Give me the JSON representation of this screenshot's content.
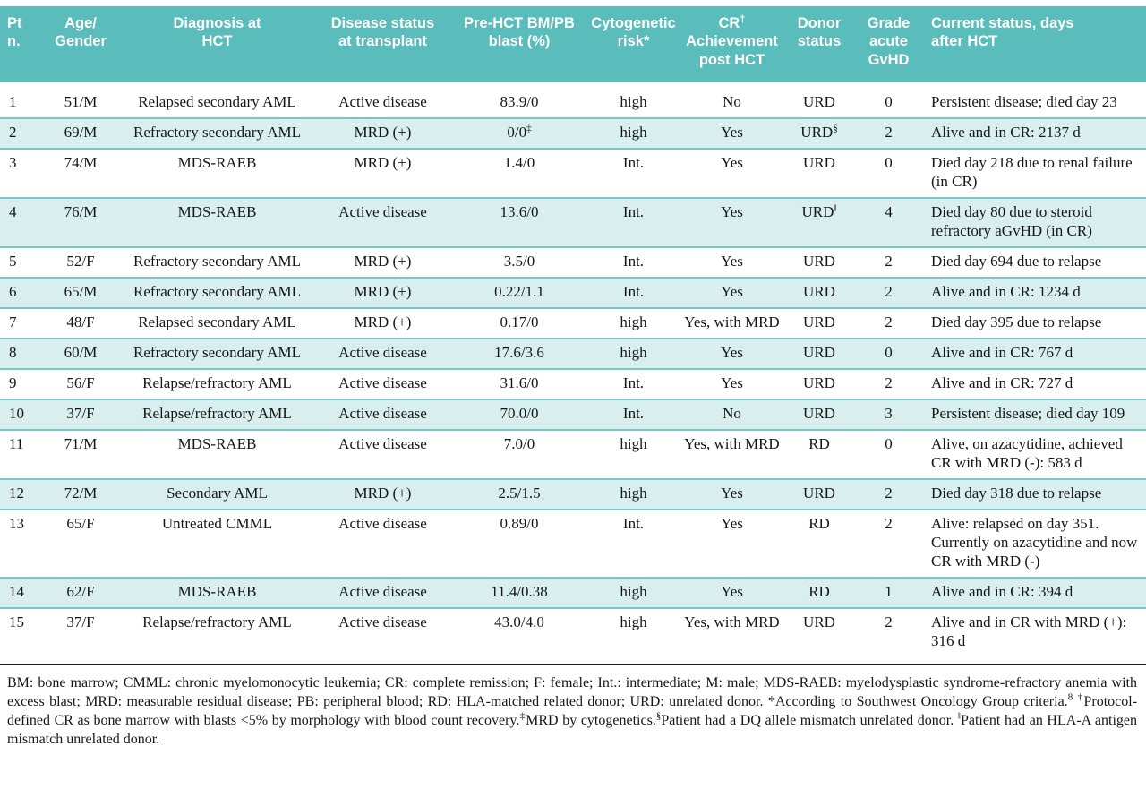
{
  "colors": {
    "header_bg": "#5bbcbc",
    "header_text": "#ffffff",
    "row_shade_bg": "#d9efef",
    "row_shade_border": "#76c7c7",
    "body_text": "#161616"
  },
  "table": {
    "columns": [
      {
        "key": "pt-number",
        "label": "Pt\nn."
      },
      {
        "key": "age-gender",
        "label": "Age/\nGender"
      },
      {
        "key": "diagnosis",
        "label": "Diagnosis at\nHCT"
      },
      {
        "key": "disease-status",
        "label": "Disease status\nat transplant"
      },
      {
        "key": "pre-hct-blast",
        "label": "Pre-HCT BM/PB\nblast (%)"
      },
      {
        "key": "cytogenetic-risk",
        "label": "Cytogenetic\nrisk*"
      },
      {
        "key": "cr-achievement",
        "label": "CR^†\nAchievement\npost HCT"
      },
      {
        "key": "donor-status",
        "label": "Donor\nstatus"
      },
      {
        "key": "grade-gvhd",
        "label": "Grade\nacute\nGvHD"
      },
      {
        "key": "current-status",
        "label": "Current status, days\nafter HCT"
      }
    ],
    "rows": [
      [
        "1",
        "51/M",
        "Relapsed secondary AML",
        "Active disease",
        "83.9/0",
        "high",
        "No",
        "URD",
        "0",
        "Persistent disease; died day 23"
      ],
      [
        "2",
        "69/M",
        "Refractory secondary AML",
        "MRD (+)",
        "0/0^‡",
        "high",
        "Yes",
        "URD^§",
        "2",
        "Alive and in CR: 2137 d"
      ],
      [
        "3",
        "74/M",
        "MDS-RAEB",
        "MRD (+)",
        "1.4/0",
        "Int.",
        "Yes",
        "URD",
        "0",
        "Died day 218 due to renal failure (in CR)"
      ],
      [
        "4",
        "76/M",
        "MDS-RAEB",
        "Active disease",
        "13.6/0",
        "Int.",
        "Yes",
        "URD^‖",
        "4",
        "Died day 80 due to steroid refractory aGvHD (in CR)"
      ],
      [
        "5",
        "52/F",
        "Refractory secondary AML",
        "MRD (+)",
        "3.5/0",
        "Int.",
        "Yes",
        "URD",
        "2",
        "Died day 694 due to relapse"
      ],
      [
        "6",
        "65/M",
        "Refractory secondary AML",
        "MRD (+)",
        "0.22/1.1",
        "Int.",
        "Yes",
        "URD",
        "2",
        "Alive and in CR: 1234 d"
      ],
      [
        "7",
        "48/F",
        "Relapsed secondary AML",
        "MRD (+)",
        "0.17/0",
        "high",
        "Yes, with MRD",
        "URD",
        "2",
        "Died day 395 due to relapse"
      ],
      [
        "8",
        "60/M",
        "Refractory secondary AML",
        "Active disease",
        "17.6/3.6",
        "high",
        "Yes",
        "URD",
        "0",
        "Alive and in CR: 767 d"
      ],
      [
        "9",
        "56/F",
        "Relapse/refractory AML",
        "Active disease",
        "31.6/0",
        "Int.",
        "Yes",
        "URD",
        "2",
        "Alive and in CR: 727 d"
      ],
      [
        "10",
        "37/F",
        "Relapse/refractory AML",
        "Active disease",
        "70.0/0",
        "Int.",
        "No",
        "URD",
        "3",
        "Persistent disease; died day 109"
      ],
      [
        "11",
        "71/M",
        "MDS-RAEB",
        "Active disease",
        "7.0/0",
        "high",
        "Yes, with MRD",
        "RD",
        "0",
        "Alive, on azacytidine, achieved CR with MRD (-): 583 d"
      ],
      [
        "12",
        "72/M",
        "Secondary AML",
        "MRD (+)",
        "2.5/1.5",
        "high",
        "Yes",
        "URD",
        "2",
        "Died day 318 due to relapse"
      ],
      [
        "13",
        "65/F",
        "Untreated CMML",
        "Active disease",
        "0.89/0",
        "Int.",
        "Yes",
        "RD",
        "2",
        "Alive: relapsed on day 351. Currently on azacytidine and now CR with MRD (-)"
      ],
      [
        "14",
        "62/F",
        "MDS-RAEB",
        "Active disease",
        "11.4/0.38",
        "high",
        "Yes",
        "RD",
        "1",
        "Alive and in CR: 394 d"
      ],
      [
        "15",
        "37/F",
        "Relapse/refractory AML",
        "Active disease",
        "43.0/4.0",
        "high",
        "Yes, with MRD",
        "URD",
        "2",
        "Alive and in CR with MRD (+): 316 d"
      ]
    ]
  },
  "footnote": "BM: bone marrow; CMML: chronic myelomonocytic leukemia; CR: complete remission; F: female; Int.: intermediate; M: male; MDS-RAEB: myelodysplastic syndrome-refractory anemia with excess blast; MRD: measurable residual disease; PB: peripheral blood; RD: HLA-matched related donor; URD: unrelated donor. *According to Southwest Oncology Group criteria.^8 ^†Protocol-defined CR as bone marrow with blasts <5% by morphology with blood count recovery.^‡MRD by cytogenetics.^§Patient had a DQ allele mismatch unrelated donor. ^‖Patient had an HLA-A antigen mismatch unrelated donor."
}
